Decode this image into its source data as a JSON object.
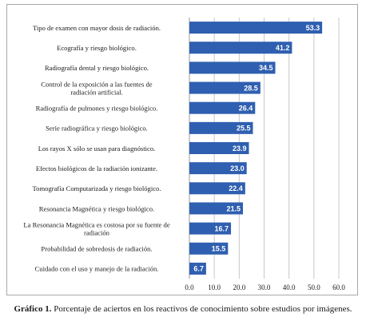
{
  "chart_data": {
    "type": "bar",
    "orientation": "horizontal",
    "categories": [
      "Tipo de examen con mayor dosis de radiación.",
      "Ecografía y riesgo biológico.",
      "Radiografía dental y riesgo biológico.",
      "Control de la exposición a las fuentes de radiación artificial.",
      "Radiografía de pulmones y riesgo biológico.",
      "Serie radiográfica y riesgo biológico.",
      "Los rayos X sólo se usan para diagnóstico.",
      "Efectos biológicos de la radiación ionizante.",
      "Tomografía Computarizada y riesgo biológico.",
      "Resonancia Magnética y riesgo biológico.",
      "La Resonancia Magnética es costosa por su fuente de radiación",
      "Probabilidad de sobredosis de radiación.",
      "Cuidado con el uso y manejo de la radiación."
    ],
    "category_lines": [
      [
        "Tipo de examen con mayor dosis de radiación."
      ],
      [
        "Ecografía y riesgo biológico."
      ],
      [
        "Radiografía dental y riesgo biológico."
      ],
      [
        "Control de la exposición a las fuentes de",
        "radiación artificial."
      ],
      [
        "Radiografía de pulmones y riesgo biológico."
      ],
      [
        "Serie radiográfica y riesgo biológico."
      ],
      [
        "Los rayos X sólo se usan para diagnóstico."
      ],
      [
        "Efectos biológicos de la radiación ionizante."
      ],
      [
        "Tomografía Computarizada y riesgo biológico."
      ],
      [
        "Resonancia Magnética y riesgo biológico."
      ],
      [
        "La Resonancia Magnética es costosa por su fuente de",
        "radiación"
      ],
      [
        "Probabilidad de sobredosis de radiación."
      ],
      [
        "Cuidado con el uso y manejo de la radiación."
      ]
    ],
    "values": [
      53.3,
      41.2,
      34.5,
      28.5,
      26.4,
      25.5,
      23.9,
      23.0,
      22.4,
      21.5,
      16.7,
      15.5,
      6.7
    ],
    "data_labels": [
      "53.3",
      "41.2",
      "34.5",
      "28.5",
      "26.4",
      "25.5",
      "23.9",
      "23.0",
      "22.4",
      "21.5",
      "16.7",
      "15.5",
      "6.7"
    ],
    "xlim": [
      0,
      60
    ],
    "xticks": [
      0,
      10,
      20,
      30,
      40,
      50,
      60
    ],
    "xtick_labels": [
      "0.0",
      "10.0",
      "20.0",
      "30.0",
      "40.0",
      "50.0",
      "60.0"
    ],
    "grid": "vertical",
    "legend": "none",
    "colors": {
      "bar": "#2f5fb0",
      "bar_label": "#ffffff",
      "grid": "#c8c8c8",
      "axis": "#999999",
      "text": "#1a1a1a"
    }
  },
  "caption": {
    "lead": "Gráfico 1.",
    "text": " Porcentaje de aciertos en los reactivos de conocimiento sobre estudios por imágenes."
  }
}
